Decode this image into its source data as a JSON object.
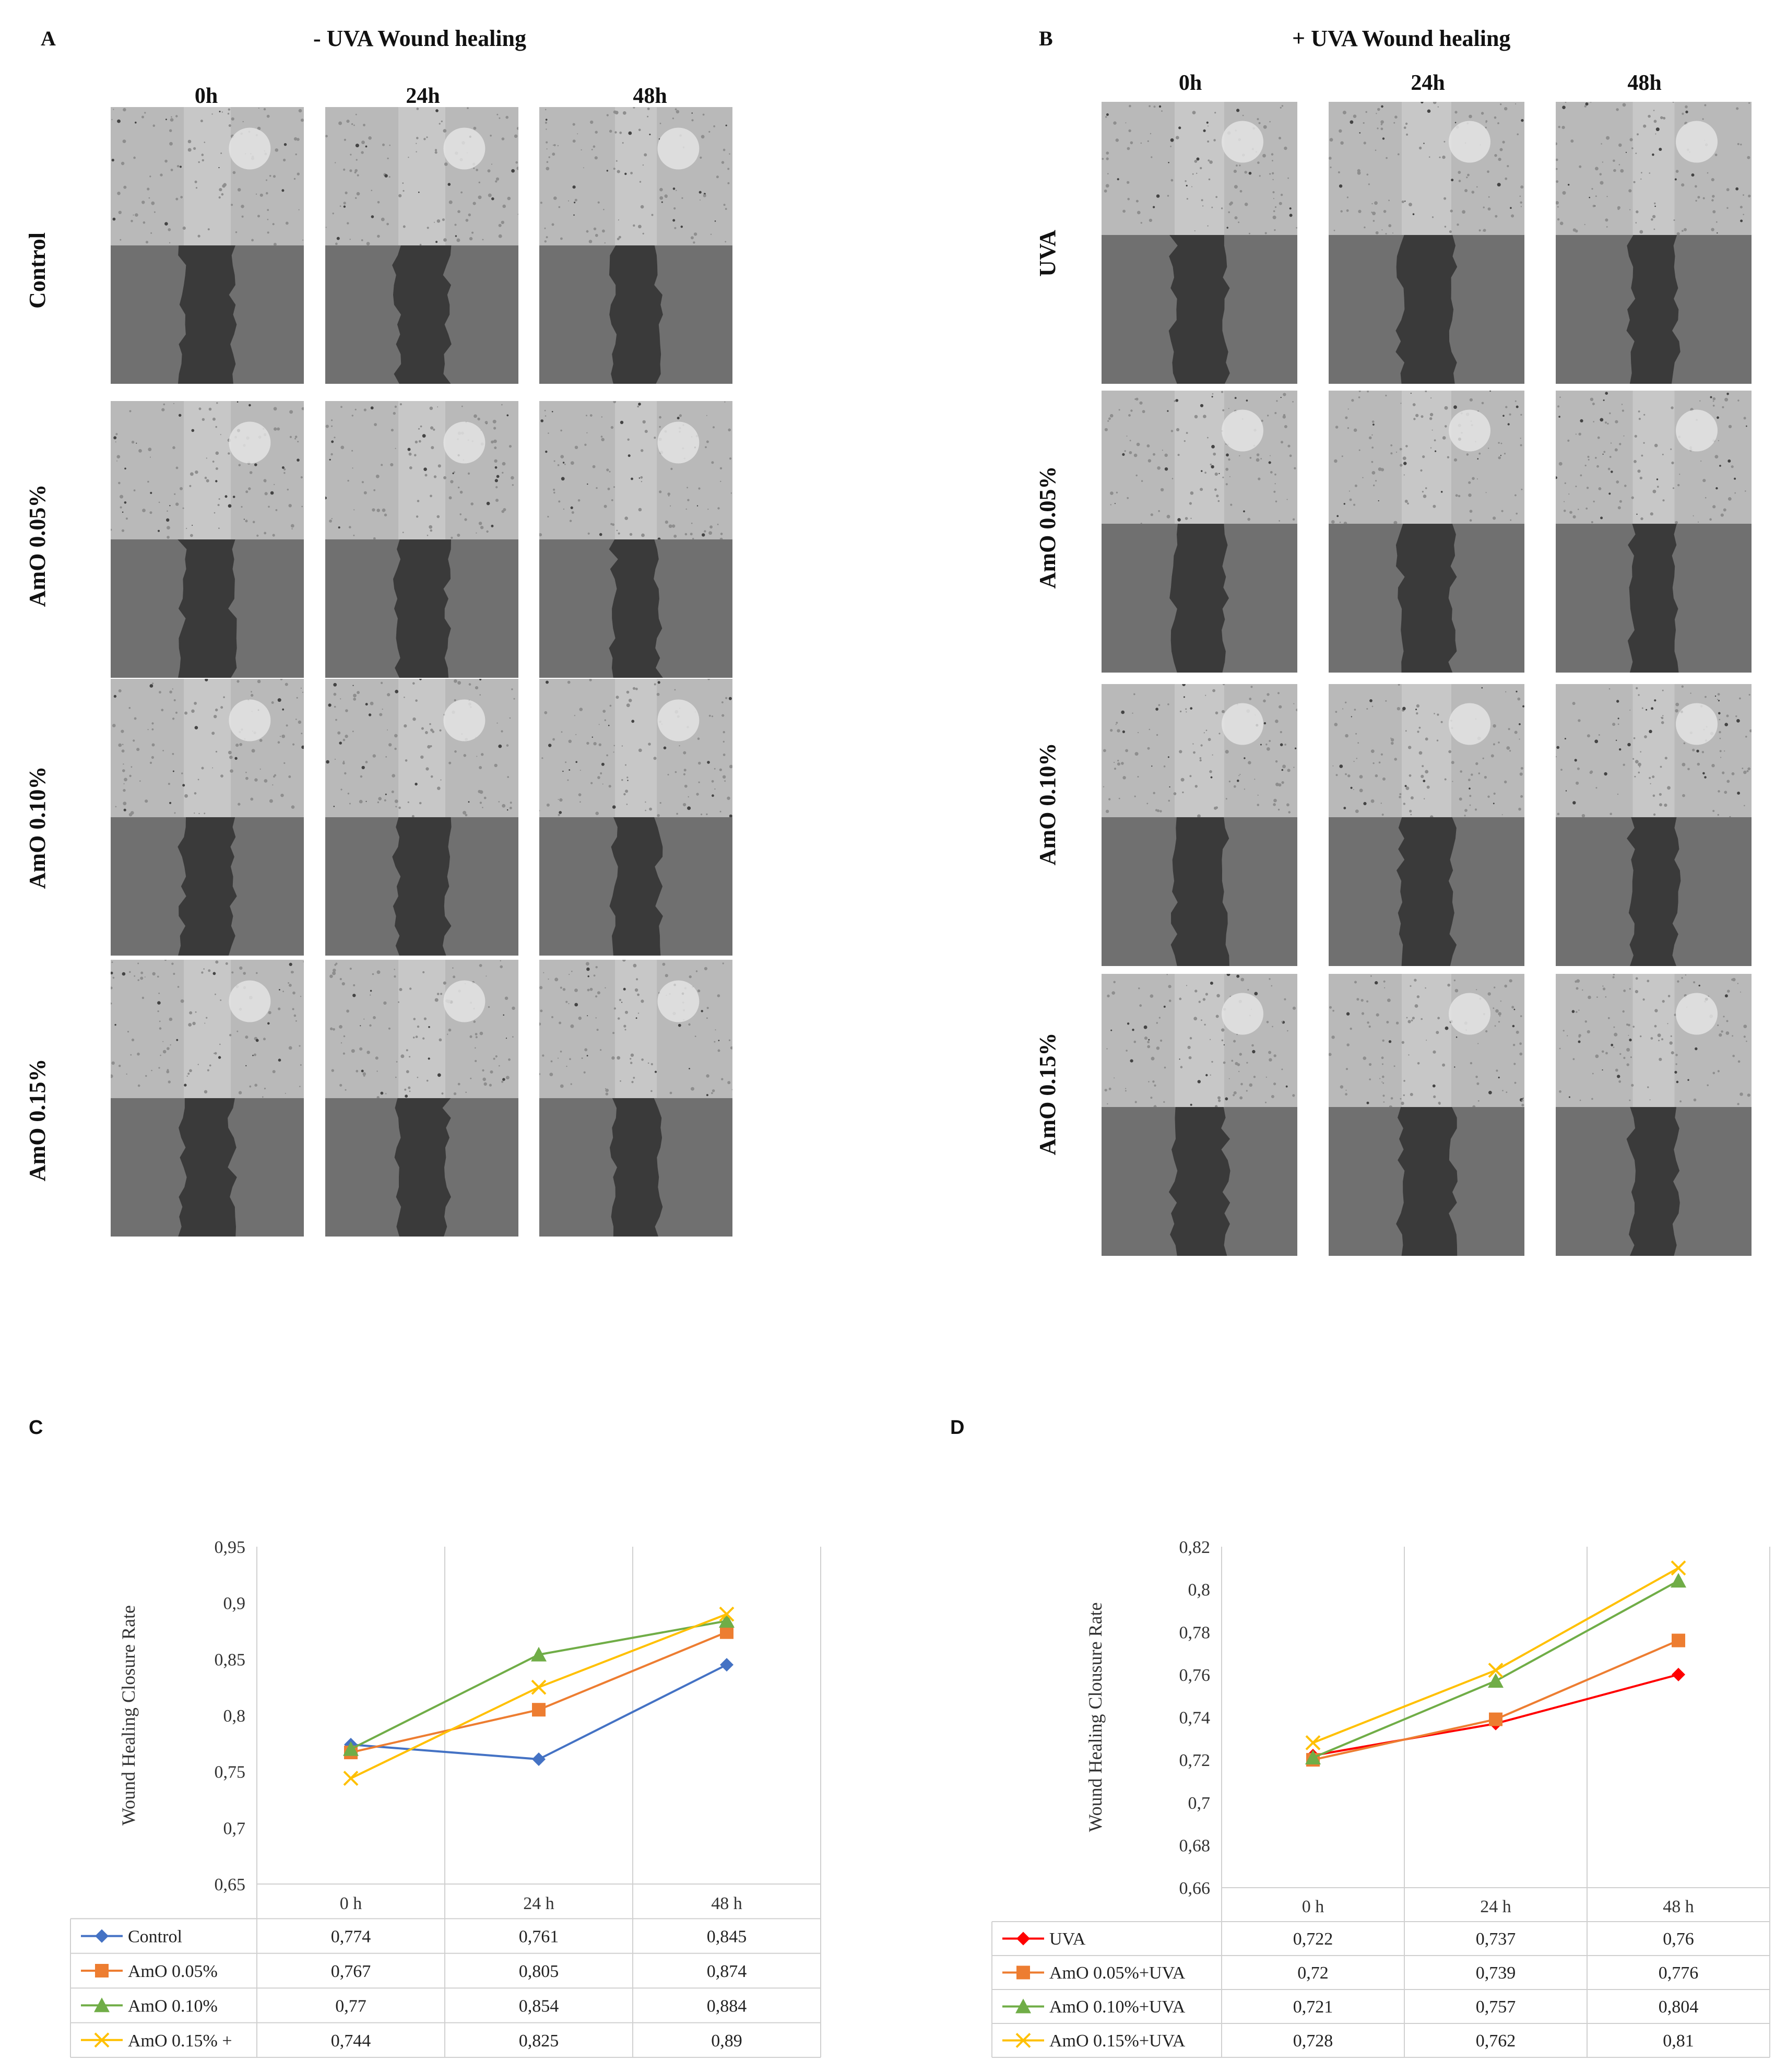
{
  "panel_a": {
    "letter": "A",
    "title": "- UVA Wound healing",
    "times": [
      "0h",
      "24h",
      "48h"
    ],
    "rows": [
      "Control",
      "AmO 0.05%",
      "AmO 0.10%",
      "AmO 0.15%"
    ]
  },
  "panel_b": {
    "letter": "B",
    "title": "+ UVA Wound healing",
    "times": [
      "0h",
      "24h",
      "48h"
    ],
    "rows": [
      "UVA",
      "AmO 0.05%",
      "AmO 0.10%",
      "AmO 0.15%"
    ]
  },
  "chart_data": [
    {
      "panel": "C",
      "type": "line",
      "categories": [
        "0 h",
        "24 h",
        "48 h"
      ],
      "ylabel": "Wound Healing Closure Rate",
      "ylim": [
        0.65,
        0.95
      ],
      "yticks": [
        "0,65",
        "0,7",
        "0,75",
        "0,8",
        "0,85",
        "0,9",
        "0,95"
      ],
      "grid": "vertical",
      "legend": "data-table",
      "series": [
        {
          "name": "Control",
          "color": "#4472c4",
          "marker": "diamond",
          "values": [
            0.774,
            0.761,
            0.845
          ],
          "labels": [
            "0,774",
            "0,761",
            "0,845"
          ]
        },
        {
          "name": "AmO 0.05%",
          "color": "#ed7d31",
          "marker": "square",
          "values": [
            0.767,
            0.805,
            0.874
          ],
          "labels": [
            "0,767",
            "0,805",
            "0,874"
          ]
        },
        {
          "name": "AmO 0.10%",
          "color": "#70ad47",
          "marker": "triangle",
          "values": [
            0.77,
            0.854,
            0.884
          ],
          "labels": [
            "0,77",
            "0,854",
            "0,884"
          ]
        },
        {
          "name": "AmO 0.15% +",
          "color": "#ffc000",
          "marker": "x",
          "values": [
            0.744,
            0.825,
            0.89
          ],
          "labels": [
            "0,744",
            "0,825",
            "0,89"
          ]
        }
      ]
    },
    {
      "panel": "D",
      "type": "line",
      "categories": [
        "0 h",
        "24 h",
        "48 h"
      ],
      "ylabel": "Wound Healing Clousure Rate",
      "ylim": [
        0.66,
        0.82
      ],
      "yticks": [
        "0,66",
        "0,68",
        "0,7",
        "0,72",
        "0,74",
        "0,76",
        "0,78",
        "0,8",
        "0,82"
      ],
      "grid": "vertical",
      "legend": "data-table",
      "series": [
        {
          "name": "UVA",
          "color": "#ff0000",
          "marker": "diamond",
          "values": [
            0.722,
            0.737,
            0.76
          ],
          "labels": [
            "0,722",
            "0,737",
            "0,76"
          ]
        },
        {
          "name": "AmO 0.05%+UVA",
          "color": "#ed7d31",
          "marker": "square",
          "values": [
            0.72,
            0.739,
            0.776
          ],
          "labels": [
            "0,72",
            "0,739",
            "0,776"
          ]
        },
        {
          "name": "AmO 0.10%+UVA",
          "color": "#70ad47",
          "marker": "triangle",
          "values": [
            0.721,
            0.757,
            0.804
          ],
          "labels": [
            "0,721",
            "0,757",
            "0,804"
          ]
        },
        {
          "name": "AmO 0.15%+UVA",
          "color": "#ffc000",
          "marker": "x",
          "values": [
            0.728,
            0.762,
            0.81
          ],
          "labels": [
            "0,728",
            "0,762",
            "0,81"
          ]
        }
      ]
    }
  ]
}
